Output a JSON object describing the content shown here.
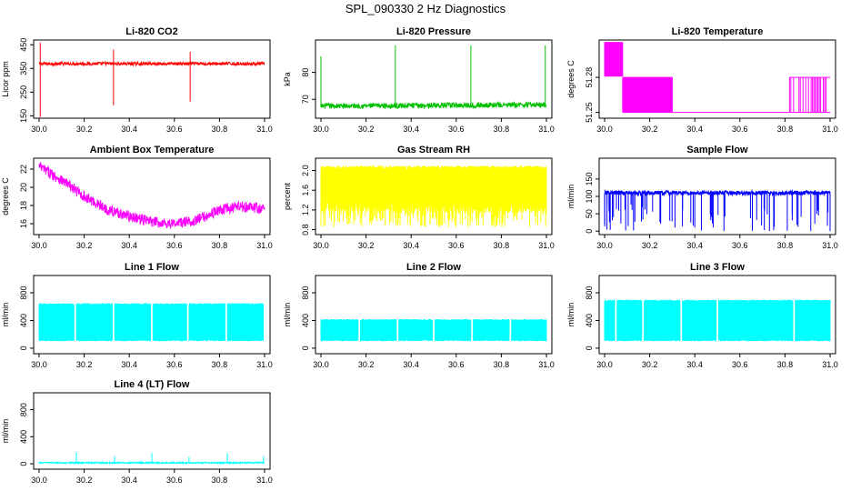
{
  "page_title": "SPL_090330  2 Hz Diagnostics",
  "chart_data": [
    {
      "type": "line",
      "title": "Li-820 CO2",
      "ylabel": "Licor ppm",
      "xlabel": "",
      "xlim": [
        30.0,
        31.0
      ],
      "ylim": [
        140,
        470
      ],
      "xticks": [
        30.0,
        30.2,
        30.4,
        30.6,
        30.8,
        31.0
      ],
      "xtick_labels": [
        "30.0",
        "30.2",
        "30.4",
        "30.6",
        "30.8",
        "31.0"
      ],
      "yticks": [
        150,
        250,
        350,
        450
      ],
      "ytick_labels": [
        "150",
        "250",
        "350",
        "450"
      ],
      "color": "#ff0000",
      "pattern": "noisy",
      "baseline": [
        [
          30.0,
          370
        ],
        [
          30.5,
          370
        ],
        [
          31.0,
          370
        ]
      ],
      "noise": 7,
      "spikes": [
        [
          30.005,
          145,
          460
        ],
        [
          30.33,
          195,
          430
        ],
        [
          30.67,
          210,
          420
        ]
      ]
    },
    {
      "type": "line",
      "title": "Li-820 Pressure",
      "ylabel": "kPa",
      "xlabel": "",
      "xlim": [
        30.0,
        31.0
      ],
      "ylim": [
        63,
        92
      ],
      "xticks": [
        30.0,
        30.2,
        30.4,
        30.6,
        30.8,
        31.0
      ],
      "xtick_labels": [
        "30.0",
        "30.2",
        "30.4",
        "30.6",
        "30.8",
        "31.0"
      ],
      "yticks": [
        70,
        80
      ],
      "ytick_labels": [
        "70",
        "80"
      ],
      "color": "#00c000",
      "pattern": "noisy",
      "baseline": [
        [
          30.0,
          67.5
        ],
        [
          31.0,
          68.0
        ]
      ],
      "noise": 1.0,
      "spikes": [
        [
          30.0,
          67,
          86
        ],
        [
          30.33,
          67,
          90
        ],
        [
          30.665,
          67,
          90
        ],
        [
          30.995,
          67,
          90
        ]
      ]
    },
    {
      "type": "line",
      "title": "Li-820 Temperature",
      "ylabel": "degrees C",
      "xlabel": "",
      "xlim": [
        30.0,
        31.0
      ],
      "ylim": [
        51.245,
        51.312
      ],
      "xticks": [
        30.0,
        30.2,
        30.4,
        30.6,
        30.8,
        31.0
      ],
      "xtick_labels": [
        "30.0",
        "30.2",
        "30.4",
        "30.6",
        "30.8",
        "31.0"
      ],
      "yticks": [
        51.25,
        51.28
      ],
      "ytick_labels": [
        "51.25",
        "51.28"
      ],
      "color": "#ff00ff",
      "pattern": "steps",
      "segments": [
        [
          30.0,
          30.08,
          51.281,
          51.31
        ],
        [
          30.08,
          30.3,
          51.25,
          51.28
        ],
        [
          30.3,
          30.82,
          51.25,
          51.25
        ],
        [
          30.82,
          31.0,
          51.25,
          51.28
        ]
      ]
    },
    {
      "type": "line",
      "title": "Ambient Box Temperature",
      "ylabel": "degrees C",
      "xlabel": "",
      "xlim": [
        30.0,
        31.0
      ],
      "ylim": [
        14.8,
        23.2
      ],
      "xticks": [
        30.0,
        30.2,
        30.4,
        30.6,
        30.8,
        31.0
      ],
      "xtick_labels": [
        "30.0",
        "30.2",
        "30.4",
        "30.6",
        "30.8",
        "31.0"
      ],
      "yticks": [
        16,
        18,
        20,
        22
      ],
      "ytick_labels": [
        "16",
        "18",
        "20",
        "22"
      ],
      "color": "#ff00ff",
      "pattern": "noisy",
      "baseline": [
        [
          30.0,
          22.3
        ],
        [
          30.1,
          20.8
        ],
        [
          30.2,
          19.0
        ],
        [
          30.3,
          17.6
        ],
        [
          30.4,
          16.8
        ],
        [
          30.5,
          16.2
        ],
        [
          30.6,
          16.0
        ],
        [
          30.7,
          16.4
        ],
        [
          30.8,
          17.5
        ],
        [
          30.9,
          17.9
        ],
        [
          31.0,
          17.6
        ]
      ],
      "noise": 0.6,
      "spikes": []
    },
    {
      "type": "line",
      "title": "Gas Stream RH",
      "ylabel": "percent",
      "xlabel": "",
      "xlim": [
        30.0,
        31.0
      ],
      "ylim": [
        0.7,
        2.25
      ],
      "xticks": [
        30.0,
        30.2,
        30.4,
        30.6,
        30.8,
        31.0
      ],
      "xtick_labels": [
        "30.0",
        "30.2",
        "30.4",
        "30.6",
        "30.8",
        "31.0"
      ],
      "yticks": [
        0.8,
        1.2,
        1.6,
        2.0
      ],
      "ytick_labels": [
        "0.8",
        "1.2",
        "1.6",
        "2.0"
      ],
      "color": "#ffff00",
      "pattern": "band",
      "band_top": 2.1,
      "band_bottom": 1.4,
      "drop_min": 0.85
    },
    {
      "type": "line",
      "title": "Sample Flow",
      "ylabel": "ml/min",
      "xlabel": "",
      "xlim": [
        30.0,
        31.0
      ],
      "ylim": [
        -10,
        210
      ],
      "xticks": [
        30.0,
        30.2,
        30.4,
        30.6,
        30.8,
        31.0
      ],
      "xtick_labels": [
        "30.0",
        "30.2",
        "30.4",
        "30.6",
        "30.8",
        "31.0"
      ],
      "yticks": [
        0,
        50,
        100,
        150
      ],
      "ytick_labels": [
        "0",
        "50",
        "100",
        "150"
      ],
      "color": "#0000ff",
      "pattern": "flowdips",
      "level": 110,
      "noise": 6,
      "dips": 70,
      "dip_min": 0
    },
    {
      "type": "line",
      "title": "Line 1 Flow",
      "ylabel": "ml/min",
      "xlabel": "",
      "xlim": [
        30.0,
        31.0
      ],
      "ylim": [
        -80,
        1050
      ],
      "xticks": [
        30.0,
        30.2,
        30.4,
        30.6,
        30.8,
        31.0
      ],
      "xtick_labels": [
        "30.0",
        "30.2",
        "30.4",
        "30.6",
        "30.8",
        "31.0"
      ],
      "yticks": [
        0,
        400,
        800
      ],
      "ytick_labels": [
        "0",
        "400",
        "800"
      ],
      "color": "#00ffff",
      "pattern": "bandgaps",
      "band_top": 650,
      "band_bottom": 100,
      "gaps": [
        30.16,
        30.33,
        30.5,
        30.66,
        30.83,
        31.0
      ]
    },
    {
      "type": "line",
      "title": "Line 2 Flow",
      "ylabel": "ml/min",
      "xlabel": "",
      "xlim": [
        30.0,
        31.0
      ],
      "ylim": [
        -80,
        1050
      ],
      "xticks": [
        30.0,
        30.2,
        30.4,
        30.6,
        30.8,
        31.0
      ],
      "xtick_labels": [
        "30.0",
        "30.2",
        "30.4",
        "30.6",
        "30.8",
        "31.0"
      ],
      "yticks": [
        0,
        400,
        800
      ],
      "ytick_labels": [
        "0",
        "400",
        "800"
      ],
      "color": "#00ffff",
      "pattern": "bandgaps",
      "band_top": 420,
      "band_bottom": 100,
      "gaps": [
        30.17,
        30.34,
        30.5,
        30.67,
        30.84
      ]
    },
    {
      "type": "line",
      "title": "Line 3 Flow",
      "ylabel": "ml/min",
      "xlabel": "",
      "xlim": [
        30.0,
        31.0
      ],
      "ylim": [
        -80,
        1050
      ],
      "xticks": [
        30.0,
        30.2,
        30.4,
        30.6,
        30.8,
        31.0
      ],
      "xtick_labels": [
        "30.0",
        "30.2",
        "30.4",
        "30.6",
        "30.8",
        "31.0"
      ],
      "yticks": [
        0,
        400,
        800
      ],
      "ytick_labels": [
        "0",
        "400",
        "800"
      ],
      "color": "#00ffff",
      "pattern": "bandgaps",
      "band_top": 700,
      "band_bottom": 100,
      "gaps": [
        30.05,
        30.17,
        30.34,
        30.5,
        30.84
      ]
    },
    {
      "type": "line",
      "title": "Line 4 (LT) Flow",
      "ylabel": "ml/min",
      "xlabel": "",
      "xlim": [
        30.0,
        31.0
      ],
      "ylim": [
        -80,
        1050
      ],
      "xticks": [
        30.0,
        30.2,
        30.4,
        30.6,
        30.8,
        31.0
      ],
      "xtick_labels": [
        "30.0",
        "30.2",
        "30.4",
        "30.6",
        "30.8",
        "31.0"
      ],
      "yticks": [
        0,
        400,
        800
      ],
      "ytick_labels": [
        "0",
        "400",
        "800"
      ],
      "color": "#00ffff",
      "pattern": "noisy",
      "baseline": [
        [
          30.0,
          15
        ],
        [
          31.0,
          15
        ]
      ],
      "noise": 10,
      "spikes": [
        [
          30.165,
          10,
          170
        ],
        [
          30.335,
          10,
          110
        ],
        [
          30.5,
          10,
          160
        ],
        [
          30.665,
          10,
          100
        ],
        [
          30.835,
          10,
          160
        ],
        [
          30.995,
          10,
          110
        ]
      ]
    }
  ]
}
